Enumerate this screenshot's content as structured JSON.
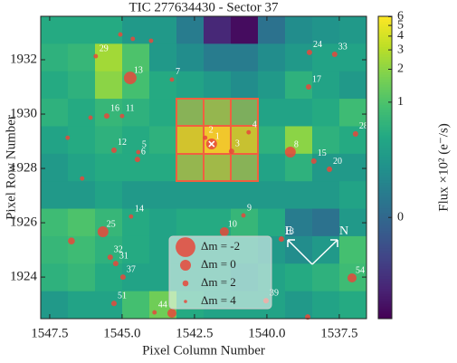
{
  "chart_data": {
    "type": "heatmap",
    "title": "TIC 277634430 - Sector 37",
    "x_label": "Pixel Column Number",
    "y_label": "Pixel Row Number",
    "colorbar_label": "Flux ×10² (e⁻/s)",
    "colormap": "viridis",
    "color_scale": "asinh",
    "clim": [
      -0.74,
      6.05
    ],
    "cticks": [
      0,
      1,
      2,
      3,
      4,
      5,
      6
    ],
    "xlim": [
      1547.81,
      1536.56
    ],
    "ylim": [
      1922.47,
      1933.6
    ],
    "xticks": [
      1547.5,
      {
        "value": 1545,
        "label": "1545.0"
      },
      1542.5,
      {
        "value": 1540,
        "label": "1540.0"
      },
      1537.5
    ],
    "yticks": [
      1924,
      1926,
      1928,
      1930,
      1932
    ],
    "z": [
      [
        0.5,
        0.5,
        0.5,
        0.3,
        0.3,
        0.1,
        -0.35,
        -0.6,
        0.05,
        0.2,
        0.25,
        0.3
      ],
      [
        0.6,
        0.7,
        2.5,
        1.0,
        0.3,
        0.2,
        0.1,
        0.1,
        0.2,
        0.3,
        0.4,
        0.4
      ],
      [
        0.5,
        0.6,
        2.0,
        0.9,
        0.5,
        0.4,
        0.3,
        0.2,
        0.3,
        0.6,
        0.4,
        0.3
      ],
      [
        0.6,
        0.5,
        0.7,
        0.6,
        0.5,
        1.2,
        1.5,
        1.0,
        0.4,
        0.4,
        0.5,
        0.8
      ],
      [
        0.4,
        0.5,
        0.6,
        0.5,
        0.6,
        3.5,
        5.5,
        3.0,
        0.6,
        2.0,
        0.6,
        0.5
      ],
      [
        0.3,
        0.4,
        0.5,
        0.5,
        0.5,
        1.5,
        1.8,
        1.2,
        0.4,
        0.6,
        0.3,
        0.3
      ],
      [
        0.3,
        0.3,
        0.4,
        0.3,
        0.3,
        0.3,
        0.3,
        0.3,
        0.3,
        0.3,
        0.3,
        0.4
      ],
      [
        0.8,
        1.0,
        0.7,
        0.5,
        0.4,
        0.5,
        0.5,
        0.7,
        0.5,
        0.1,
        0.05,
        0.3
      ],
      [
        0.7,
        0.8,
        0.6,
        0.5,
        0.4,
        0.4,
        0.4,
        0.4,
        0.3,
        0.2,
        0.3,
        0.9
      ],
      [
        0.6,
        0.7,
        0.5,
        0.4,
        0.4,
        0.4,
        0.4,
        0.3,
        0.4,
        0.5,
        0.6,
        0.8
      ],
      [
        0.3,
        0.4,
        0.4,
        0.9,
        1.5,
        0.5,
        0.4,
        0.4,
        0.4,
        0.3,
        0.4,
        0.5
      ]
    ],
    "stars": {
      "color": "#e8483b",
      "labels": [
        "1",
        "2",
        "3",
        "4",
        "5",
        "6",
        "7",
        "8",
        "9",
        "10",
        "11",
        "12",
        "13",
        "14",
        "15",
        "16",
        "17",
        "18",
        "20",
        "24",
        "25",
        "28",
        "29",
        "31",
        "32",
        "33",
        "37",
        "39",
        "44",
        "51",
        "54",
        null,
        null,
        null,
        null,
        null,
        null,
        null,
        null,
        null
      ],
      "x": [
        1541.91,
        1542.13,
        1541.22,
        1540.63,
        1544.44,
        1544.47,
        1543.28,
        1539.19,
        1540.81,
        1541.47,
        1545.0,
        1545.28,
        1544.72,
        1544.69,
        1538.38,
        1545.53,
        1538.56,
        1539.5,
        1537.84,
        1538.53,
        1545.66,
        1536.94,
        1545.91,
        1545.22,
        1545.41,
        1537.66,
        1544.97,
        1540.03,
        1543.88,
        1545.28,
        1537.06,
        1545.06,
        1544.63,
        1544.0,
        1546.88,
        1546.09,
        1546.38,
        1546.75,
        1538.59,
        1543.28
      ],
      "y": [
        1928.9,
        1929.13,
        1928.63,
        1929.33,
        1928.6,
        1928.33,
        1931.27,
        1928.6,
        1926.27,
        1925.67,
        1929.93,
        1928.67,
        1931.33,
        1926.23,
        1928.27,
        1929.93,
        1931.0,
        1925.4,
        1927.97,
        1932.27,
        1925.67,
        1929.27,
        1932.13,
        1924.5,
        1924.73,
        1932.2,
        1924.0,
        1923.13,
        1922.7,
        1923.03,
        1923.97,
        1932.93,
        1932.77,
        1932.7,
        1929.13,
        1929.87,
        1927.63,
        1925.33,
        1922.53,
        1922.67
      ],
      "dm": [
        0,
        3,
        2.3,
        3,
        3,
        2.3,
        3,
        0,
        3,
        0.6,
        3,
        2.3,
        -0.5,
        3,
        2.3,
        2.3,
        2.3,
        2.3,
        2.3,
        2.3,
        0,
        2.3,
        3,
        2.3,
        2.3,
        2.3,
        2.3,
        2.3,
        3,
        2.3,
        0.6,
        3,
        3,
        3,
        3,
        3,
        3,
        1.5,
        2.3,
        0.6
      ]
    },
    "size_legend": [
      {
        "label": "Δm = -2",
        "dm": -2
      },
      {
        "label": "Δm = 0",
        "dm": 0
      },
      {
        "label": "Δm = 2",
        "dm": 2
      },
      {
        "label": "Δm = 4",
        "dm": 4
      }
    ],
    "compass": {
      "east": "E",
      "north": "N"
    }
  }
}
